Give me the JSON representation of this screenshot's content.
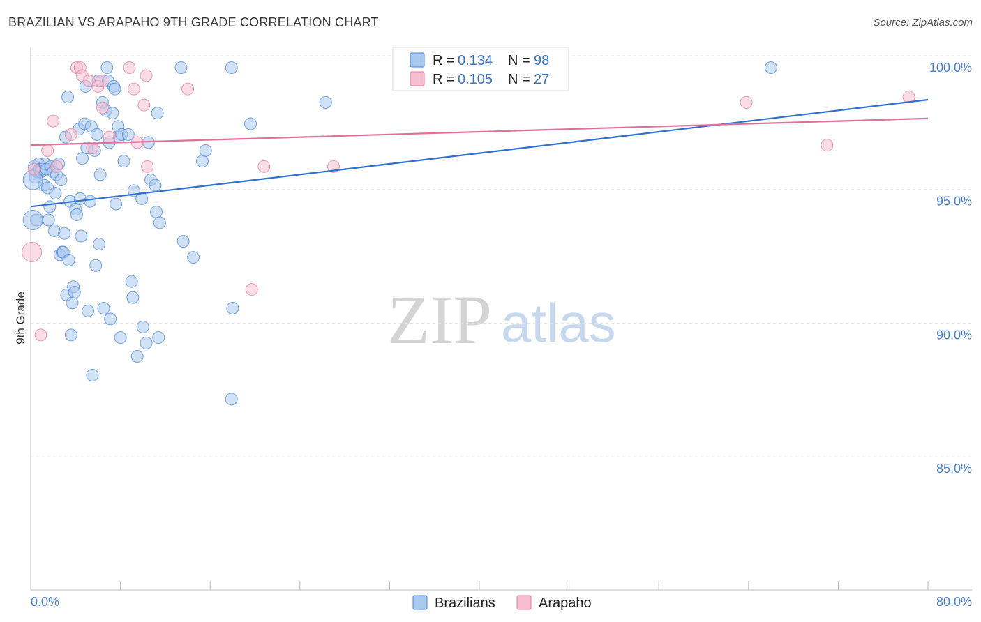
{
  "header": {
    "title": "BRAZILIAN VS ARAPAHO 9TH GRADE CORRELATION CHART",
    "source": "Source: ZipAtlas.com"
  },
  "chart_data": {
    "type": "scatter",
    "title": "BRAZILIAN VS ARAPAHO 9TH GRADE CORRELATION CHART",
    "xlabel": "",
    "ylabel": "9th Grade",
    "xlim": [
      0,
      80
    ],
    "ylim": [
      80.3,
      100.5
    ],
    "x_tick_labels": [
      "0.0%",
      "80.0%"
    ],
    "y_ticks": [
      {
        "value": 100,
        "label": "100.0%"
      },
      {
        "value": 95,
        "label": "95.0%"
      },
      {
        "value": 90,
        "label": "90.0%"
      },
      {
        "value": 85,
        "label": "85.0%"
      }
    ],
    "watermark": {
      "part1": "ZIP",
      "part2": "atlas"
    },
    "legend": {
      "rows": [
        {
          "r_label": "R =",
          "r_value": "0.134",
          "n_label": "N =",
          "n_value": "98"
        },
        {
          "r_label": "R =",
          "r_value": "0.105",
          "n_label": "N =",
          "n_value": "27"
        }
      ]
    },
    "series": [
      {
        "name": "Brazilians",
        "color": "#4a86d8",
        "fill": "#a9c8ee",
        "trend": {
          "x": [
            0,
            80
          ],
          "y": [
            94.8,
            98.8
          ]
        },
        "points": [
          [
            0.3,
            96.3
          ],
          [
            0.4,
            95.9
          ],
          [
            0.5,
            94.3
          ],
          [
            0.6,
            96.1
          ],
          [
            0.7,
            96.4
          ],
          [
            0.8,
            96.2
          ],
          [
            0.9,
            96.1
          ],
          [
            1.0,
            96.2
          ],
          [
            1.2,
            95.6
          ],
          [
            1.3,
            96.4
          ],
          [
            1.4,
            96.2
          ],
          [
            1.5,
            95.5
          ],
          [
            1.6,
            94.3
          ],
          [
            1.7,
            94.8
          ],
          [
            1.8,
            96.3
          ],
          [
            2.0,
            96.1
          ],
          [
            2.1,
            93.9
          ],
          [
            2.2,
            95.3
          ],
          [
            2.3,
            96.0
          ],
          [
            2.5,
            96.4
          ],
          [
            2.6,
            93.0
          ],
          [
            2.7,
            95.8
          ],
          [
            2.8,
            93.1
          ],
          [
            2.9,
            93.1
          ],
          [
            3.0,
            93.8
          ],
          [
            3.1,
            97.4
          ],
          [
            3.2,
            91.5
          ],
          [
            3.3,
            98.9
          ],
          [
            3.4,
            92.8
          ],
          [
            3.5,
            95.0
          ],
          [
            3.6,
            90.0
          ],
          [
            3.7,
            91.2
          ],
          [
            3.8,
            91.8
          ],
          [
            3.9,
            91.6
          ],
          [
            4.0,
            94.7
          ],
          [
            4.1,
            94.5
          ],
          [
            4.3,
            97.7
          ],
          [
            4.4,
            95.1
          ],
          [
            4.5,
            93.7
          ],
          [
            4.6,
            96.6
          ],
          [
            4.8,
            97.9
          ],
          [
            4.9,
            99.3
          ],
          [
            5.0,
            97.0
          ],
          [
            5.1,
            90.9
          ],
          [
            5.3,
            95.0
          ],
          [
            5.4,
            97.8
          ],
          [
            5.5,
            88.5
          ],
          [
            5.7,
            96.9
          ],
          [
            5.8,
            92.6
          ],
          [
            5.9,
            97.5
          ],
          [
            6.0,
            99.5
          ],
          [
            6.1,
            93.4
          ],
          [
            6.2,
            96.0
          ],
          [
            6.4,
            98.7
          ],
          [
            6.5,
            91.0
          ],
          [
            6.7,
            98.4
          ],
          [
            6.8,
            100.0
          ],
          [
            6.9,
            99.5
          ],
          [
            7.0,
            97.2
          ],
          [
            7.1,
            90.6
          ],
          [
            7.3,
            98.3
          ],
          [
            7.4,
            99.3
          ],
          [
            7.5,
            99.2
          ],
          [
            7.6,
            94.9
          ],
          [
            7.8,
            97.8
          ],
          [
            7.9,
            97.4
          ],
          [
            8.0,
            89.9
          ],
          [
            8.1,
            97.5
          ],
          [
            8.3,
            96.5
          ],
          [
            8.7,
            97.5
          ],
          [
            9.0,
            92.0
          ],
          [
            9.1,
            91.4
          ],
          [
            9.2,
            95.4
          ],
          [
            9.5,
            89.2
          ],
          [
            9.9,
            95.1
          ],
          [
            10.0,
            90.3
          ],
          [
            10.3,
            89.7
          ],
          [
            10.5,
            97.2
          ],
          [
            10.7,
            95.8
          ],
          [
            11.1,
            95.6
          ],
          [
            11.2,
            94.6
          ],
          [
            11.3,
            98.3
          ],
          [
            11.4,
            89.9
          ],
          [
            11.5,
            94.2
          ],
          [
            13.4,
            100.0
          ],
          [
            13.6,
            93.5
          ],
          [
            14.5,
            92.9
          ],
          [
            15.3,
            96.5
          ],
          [
            15.6,
            96.9
          ],
          [
            17.9,
            100.0
          ],
          [
            17.9,
            87.6
          ],
          [
            18.0,
            91.0
          ],
          [
            19.6,
            97.9
          ],
          [
            26.3,
            98.7
          ],
          [
            66.0,
            100.0
          ]
        ],
        "big_points": [
          [
            0.2,
            94.3
          ],
          [
            0.2,
            95.8
          ]
        ]
      },
      {
        "name": "Arapaho",
        "color": "#e27ea0",
        "fill": "#f5bfd1",
        "trend": {
          "x": [
            0,
            80
          ],
          "y": [
            97.1,
            98.1
          ]
        },
        "points": [
          [
            0.3,
            96.2
          ],
          [
            0.9,
            90.0
          ],
          [
            1.5,
            96.9
          ],
          [
            2.0,
            98.0
          ],
          [
            2.3,
            96.3
          ],
          [
            3.6,
            97.5
          ],
          [
            4.1,
            100.0
          ],
          [
            4.4,
            100.0
          ],
          [
            4.6,
            99.7
          ],
          [
            5.2,
            99.5
          ],
          [
            5.5,
            97.0
          ],
          [
            6.0,
            99.3
          ],
          [
            6.3,
            99.5
          ],
          [
            6.4,
            98.5
          ],
          [
            7.0,
            97.4
          ],
          [
            8.8,
            100.0
          ],
          [
            9.2,
            99.2
          ],
          [
            9.5,
            97.2
          ],
          [
            10.1,
            98.6
          ],
          [
            10.3,
            99.7
          ],
          [
            10.4,
            96.3
          ],
          [
            14.0,
            99.2
          ],
          [
            19.7,
            91.7
          ],
          [
            20.8,
            96.3
          ],
          [
            27.0,
            96.3
          ],
          [
            63.8,
            98.7
          ],
          [
            71.0,
            97.1
          ],
          [
            78.3,
            98.9
          ]
        ],
        "big_points": [
          [
            0.1,
            93.1
          ]
        ]
      }
    ],
    "bottom_legend": [
      "Brazilians",
      "Arapaho"
    ]
  }
}
